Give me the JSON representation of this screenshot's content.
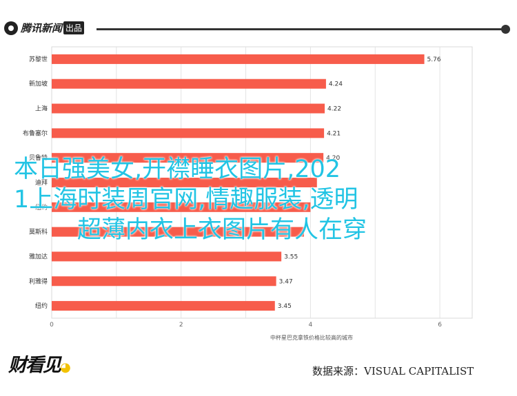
{
  "header": {
    "logo_text": "腾讯新闻",
    "logo_badge": "出品"
  },
  "overlay_title": {
    "line1": "本日强美女,开襟睡衣图片,202",
    "line2": "1上海时装周官网,情趣服装,透明",
    "line3": "超薄内衣上衣图片有人在穿"
  },
  "chart_data": {
    "type": "bar",
    "orientation": "horizontal",
    "title": "",
    "xlabel": "中杯星巴克拿铁价格比较高的城市",
    "ylabel": "",
    "xlim": [
      0,
      6.5
    ],
    "xticks": [
      "0",
      "2",
      "4",
      "6"
    ],
    "bar_color": "#f75c4b",
    "categories": [
      "苏黎世",
      "新加坡",
      "上海",
      "布鲁塞尔",
      "贝鲁特",
      "迪拜",
      "纽约",
      "莫斯科",
      "雅加达",
      "利雅得",
      "纽约"
    ],
    "values": [
      5.76,
      4.24,
      4.22,
      4.21,
      4.2,
      4.1,
      4.0,
      3.9,
      3.55,
      3.47,
      3.45
    ],
    "value_labels": [
      "5.76",
      "4.24",
      "4.22",
      "4.21",
      "4.20",
      "",
      "",
      "",
      "3.55",
      "3.47",
      "3.45"
    ]
  },
  "footer": {
    "logo_text": "财看见",
    "source_text": "数据来源：VISUAL CAPITALIST"
  }
}
